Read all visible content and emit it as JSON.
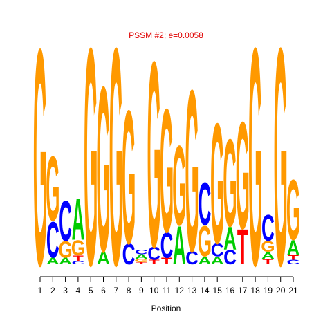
{
  "chart_data": {
    "type": "sequence-logo",
    "title": "PSSM #2; e=0.0058",
    "x_label": "Position",
    "categories": [
      1,
      2,
      3,
      4,
      5,
      6,
      7,
      8,
      9,
      10,
      11,
      12,
      13,
      14,
      15,
      16,
      17,
      18,
      19,
      20,
      21
    ],
    "ylim": [
      0,
      2
    ],
    "series": [
      {
        "name": "A",
        "color": "#00cc00",
        "values": [
          0,
          0.06,
          0.06,
          0.38,
          0,
          0.12,
          0,
          0,
          0.04,
          0,
          0,
          0.35,
          0,
          0.07,
          0.07,
          0.21,
          0,
          0,
          0.06,
          0,
          0.14
        ]
      },
      {
        "name": "C",
        "color": "#0000ff",
        "values": [
          0,
          0.33,
          0.37,
          0.03,
          0,
          0,
          0,
          0.19,
          0.04,
          0.12,
          0.23,
          0,
          0.12,
          0.39,
          0.12,
          0.13,
          0,
          0,
          0.24,
          0,
          0.04
        ]
      },
      {
        "name": "G",
        "color": "#ff9900",
        "values": [
          1.98,
          0.59,
          0.15,
          0.14,
          1.99,
          1.51,
          1.99,
          1.22,
          0.03,
          1.7,
          1.13,
          0.73,
          1.48,
          0.28,
          1.1,
          0.8,
          0.98,
          1.99,
          0.1,
          1.99,
          0.55
        ]
      },
      {
        "name": "T",
        "color": "#ff0000",
        "values": [
          0,
          0,
          0,
          0.05,
          0,
          0,
          0,
          0,
          0.02,
          0.04,
          0.06,
          0,
          0,
          0,
          0,
          0,
          0.32,
          0,
          0.05,
          0,
          0.04
        ]
      }
    ]
  }
}
